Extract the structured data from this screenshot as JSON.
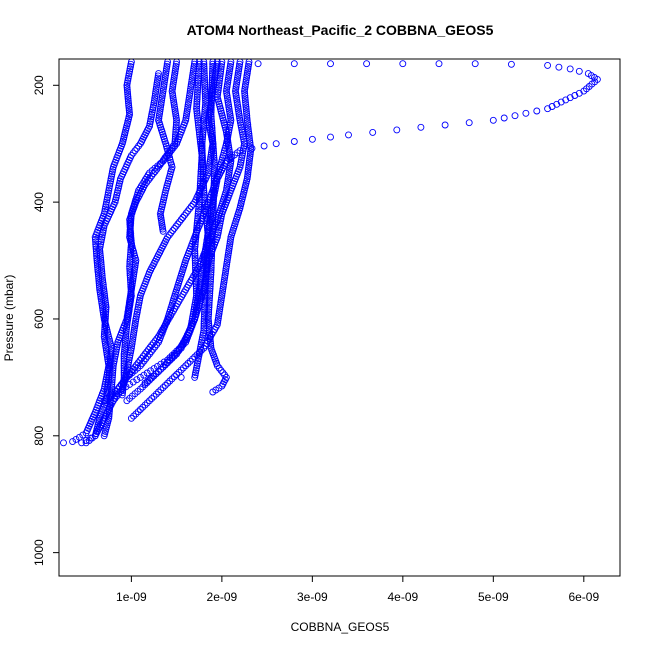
{
  "chart_data": {
    "type": "scatter",
    "title": "ATOM4 Northeast_Pacific_2 COBBNA_GEOS5",
    "xlabel": "COBBNA_GEOS5",
    "ylabel": "Pressure (mbar)",
    "xlim": [
      2e-10,
      6.4e-09
    ],
    "ylim": [
      1040,
      155
    ],
    "y_reversed": true,
    "grid": false,
    "legend": "none",
    "x_ticks": [
      {
        "value": 1e-09,
        "label": "1e-09"
      },
      {
        "value": 2e-09,
        "label": "2e-09"
      },
      {
        "value": 3e-09,
        "label": "3e-09"
      },
      {
        "value": 4e-09,
        "label": "4e-09"
      },
      {
        "value": 5e-09,
        "label": "5e-09"
      },
      {
        "value": 6e-09,
        "label": "6e-09"
      }
    ],
    "y_ticks": [
      {
        "value": 200,
        "label": "200"
      },
      {
        "value": 400,
        "label": "400"
      },
      {
        "value": 600,
        "label": "600"
      },
      {
        "value": 800,
        "label": "800"
      },
      {
        "value": 1000,
        "label": "1000"
      }
    ],
    "marker": {
      "shape": "open-circle",
      "color": "#0000ff"
    },
    "series": [
      {
        "points": [
          [
            2.4e-09,
            163
          ],
          [
            2.8e-09,
            163
          ],
          [
            3.2e-09,
            163
          ],
          [
            3.6e-09,
            163
          ],
          [
            4e-09,
            163
          ],
          [
            4.4e-09,
            163
          ],
          [
            4.8e-09,
            163
          ],
          [
            5.2e-09,
            164
          ],
          [
            5.6e-09,
            166
          ],
          [
            5.85e-09,
            172
          ],
          [
            6.05e-09,
            180
          ],
          [
            6.15e-09,
            190
          ],
          [
            6e-09,
            210
          ],
          [
            5.6e-09,
            240
          ],
          [
            5e-09,
            260
          ],
          [
            4.2e-09,
            272
          ],
          [
            3.4e-09,
            285
          ],
          [
            2.6e-09,
            300
          ],
          [
            2.2e-09,
            312
          ],
          [
            2.05e-09,
            330
          ],
          [
            1.95e-09,
            360
          ],
          [
            1.9e-09,
            400
          ],
          [
            1.85e-09,
            450
          ],
          [
            1.8e-09,
            500
          ],
          [
            1.75e-09,
            550
          ],
          [
            1.7e-09,
            600
          ],
          [
            1.6e-09,
            640
          ],
          [
            1.4e-09,
            670
          ],
          [
            1.1e-09,
            700
          ],
          [
            9e-10,
            720
          ],
          [
            8e-10,
            740
          ],
          [
            7e-10,
            770
          ],
          [
            6e-10,
            800
          ],
          [
            4.5e-10,
            812
          ]
        ]
      },
      {
        "points": [
          [
            1e-09,
            160
          ],
          [
            9.5e-10,
            200
          ],
          [
            9.8e-10,
            250
          ],
          [
            9e-10,
            300
          ],
          [
            8e-10,
            340
          ],
          [
            7.5e-10,
            380
          ],
          [
            7e-10,
            420
          ],
          [
            6e-10,
            460
          ],
          [
            6.2e-10,
            500
          ],
          [
            6.5e-10,
            550
          ],
          [
            7e-10,
            600
          ],
          [
            7.8e-10,
            650
          ],
          [
            7.5e-10,
            700
          ],
          [
            7.2e-10,
            740
          ],
          [
            6.5e-10,
            770
          ],
          [
            6e-10,
            800
          ],
          [
            5e-10,
            812
          ]
        ]
      },
      {
        "points": [
          [
            1.3e-09,
            180
          ],
          [
            1.25e-09,
            230
          ],
          [
            1.2e-09,
            270
          ],
          [
            1.1e-09,
            300
          ],
          [
            1e-09,
            320
          ],
          [
            8.8e-10,
            360
          ],
          [
            8.2e-10,
            400
          ],
          [
            7e-10,
            440
          ],
          [
            6.5e-10,
            480
          ],
          [
            6.8e-10,
            530
          ],
          [
            7.2e-10,
            580
          ],
          [
            7e-10,
            630
          ],
          [
            7.5e-10,
            680
          ],
          [
            7e-10,
            720
          ],
          [
            6e-10,
            760
          ],
          [
            5e-10,
            795
          ],
          [
            3.5e-10,
            810
          ],
          [
            2.5e-10,
            812
          ]
        ]
      },
      {
        "points": [
          [
            1.4e-09,
            160
          ],
          [
            1.35e-09,
            210
          ],
          [
            1.3e-09,
            260
          ],
          [
            1.38e-09,
            300
          ],
          [
            1.45e-09,
            340
          ],
          [
            1.38e-09,
            380
          ],
          [
            1.32e-09,
            420
          ],
          [
            1.35e-09,
            450
          ]
        ]
      },
      {
        "points": [
          [
            1.5e-09,
            160
          ],
          [
            1.45e-09,
            210
          ],
          [
            1.5e-09,
            260
          ],
          [
            1.48e-09,
            300
          ],
          [
            1.3e-09,
            340
          ],
          [
            1.15e-09,
            370
          ],
          [
            1.05e-09,
            400
          ],
          [
            9.8e-10,
            430
          ],
          [
            1e-09,
            470
          ],
          [
            9.8e-10,
            510
          ],
          [
            1e-09,
            560
          ],
          [
            9.5e-10,
            610
          ],
          [
            9.2e-10,
            660
          ],
          [
            9.2e-10,
            700
          ],
          [
            9e-10,
            730
          ]
        ]
      },
      {
        "points": [
          [
            1.7e-09,
            160
          ],
          [
            1.65e-09,
            210
          ],
          [
            1.6e-09,
            260
          ],
          [
            1.5e-09,
            300
          ],
          [
            1.35e-09,
            330
          ],
          [
            1.2e-09,
            350
          ],
          [
            1.08e-09,
            380
          ],
          [
            1e-09,
            420
          ],
          [
            9.8e-10,
            460
          ],
          [
            1.05e-09,
            500
          ],
          [
            1e-09,
            550
          ],
          [
            9.5e-10,
            600
          ],
          [
            8.5e-10,
            640
          ],
          [
            8e-10,
            680
          ],
          [
            7.8e-10,
            720
          ],
          [
            7.5e-10,
            770
          ],
          [
            7e-10,
            800
          ]
        ]
      },
      {
        "points": [
          [
            1.95e-09,
            160
          ],
          [
            1.9e-09,
            210
          ],
          [
            1.85e-09,
            260
          ],
          [
            1.9e-09,
            300
          ],
          [
            1.85e-09,
            350
          ],
          [
            1.7e-09,
            400
          ],
          [
            1.55e-09,
            430
          ],
          [
            1.4e-09,
            460
          ],
          [
            1.3e-09,
            490
          ],
          [
            1.2e-09,
            520
          ],
          [
            1.1e-09,
            560
          ],
          [
            1.05e-09,
            600
          ],
          [
            1e-09,
            650
          ],
          [
            9.5e-10,
            690
          ],
          [
            9e-10,
            720
          ]
        ]
      },
      {
        "points": [
          [
            2.1e-09,
            160
          ],
          [
            2.05e-09,
            210
          ],
          [
            2.1e-09,
            260
          ],
          [
            2.05e-09,
            300
          ],
          [
            1.98e-09,
            340
          ],
          [
            1.9e-09,
            380
          ],
          [
            1.8e-09,
            420
          ],
          [
            1.7e-09,
            460
          ],
          [
            1.6e-09,
            500
          ],
          [
            1.5e-09,
            550
          ],
          [
            1.4e-09,
            600
          ],
          [
            1.3e-09,
            640
          ],
          [
            1.1e-09,
            680
          ],
          [
            9.5e-10,
            700
          ],
          [
            8.5e-10,
            720
          ],
          [
            8e-10,
            740
          ]
        ]
      },
      {
        "points": [
          [
            2.2e-09,
            160
          ],
          [
            2.15e-09,
            210
          ],
          [
            2.2e-09,
            260
          ],
          [
            2.25e-09,
            300
          ],
          [
            2.2e-09,
            340
          ],
          [
            2.1e-09,
            380
          ],
          [
            2e-09,
            420
          ],
          [
            1.95e-09,
            460
          ],
          [
            1.85e-09,
            500
          ],
          [
            1.8e-09,
            550
          ],
          [
            1.7e-09,
            600
          ],
          [
            1.55e-09,
            650
          ],
          [
            1.3e-09,
            690
          ],
          [
            1.1e-09,
            720
          ],
          [
            9.5e-10,
            740
          ]
        ]
      },
      {
        "points": [
          [
            2.3e-09,
            160
          ],
          [
            2.25e-09,
            210
          ],
          [
            2.28e-09,
            260
          ],
          [
            2.32e-09,
            310
          ],
          [
            2.28e-09,
            360
          ],
          [
            2.2e-09,
            410
          ],
          [
            2.1e-09,
            460
          ],
          [
            2.05e-09,
            510
          ],
          [
            2e-09,
            560
          ],
          [
            1.95e-09,
            610
          ],
          [
            1.8e-09,
            650
          ],
          [
            1.6e-09,
            680
          ],
          [
            1.4e-09,
            710
          ],
          [
            1.2e-09,
            740
          ],
          [
            1e-09,
            770
          ]
        ]
      },
      {
        "points": [
          [
            1.8e-09,
            160
          ],
          [
            1.82e-09,
            230
          ],
          [
            1.78e-09,
            300
          ],
          [
            1.8e-09,
            380
          ],
          [
            1.85e-09,
            460
          ],
          [
            1.82e-09,
            540
          ],
          [
            1.8e-09,
            620
          ],
          [
            1.75e-09,
            660
          ],
          [
            1.7e-09,
            700
          ],
          [
            1.55e-09,
            700
          ]
        ]
      },
      {
        "points": [
          [
            1.9e-09,
            160
          ],
          [
            1.88e-09,
            250
          ],
          [
            1.92e-09,
            340
          ],
          [
            1.9e-09,
            430
          ],
          [
            1.88e-09,
            520
          ],
          [
            1.85e-09,
            600
          ],
          [
            1.88e-09,
            650
          ],
          [
            1.95e-09,
            680
          ],
          [
            2.05e-09,
            700
          ],
          [
            2e-09,
            715
          ],
          [
            1.9e-09,
            725
          ]
        ]
      },
      {
        "points": [
          [
            1.75e-09,
            160
          ],
          [
            1.72e-09,
            240
          ],
          [
            1.78e-09,
            320
          ],
          [
            1.75e-09,
            400
          ],
          [
            1.7e-09,
            480
          ],
          [
            1.72e-09,
            560
          ],
          [
            1.65e-09,
            620
          ],
          [
            1.5e-09,
            660
          ],
          [
            1.3e-09,
            690
          ],
          [
            1.15e-09,
            710
          ]
        ]
      },
      {
        "points": [
          [
            2e-09,
            160
          ],
          [
            1.95e-09,
            220
          ],
          [
            2.05e-09,
            280
          ],
          [
            2.1e-09,
            330
          ],
          [
            2.05e-09,
            380
          ],
          [
            1.95e-09,
            430
          ],
          [
            1.85e-09,
            470
          ],
          [
            1.75e-09,
            510
          ],
          [
            1.6e-09,
            550
          ],
          [
            1.45e-09,
            590
          ],
          [
            1.3e-09,
            630
          ],
          [
            1.15e-09,
            660
          ],
          [
            1e-09,
            690
          ],
          [
            8.5e-10,
            720
          ],
          [
            7e-10,
            740
          ]
        ]
      }
    ]
  }
}
